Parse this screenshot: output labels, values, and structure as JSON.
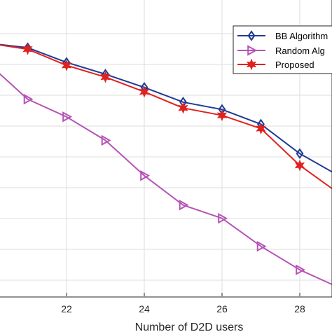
{
  "chart_data": {
    "type": "line",
    "xlabel": "Number of D2D users",
    "ylabel": "",
    "title": "",
    "xlim": [
      20,
      29
    ],
    "ylim": [
      0,
      10
    ],
    "x_ticks": [
      22,
      24,
      26,
      28
    ],
    "grid": true,
    "legend_position": "top-right",
    "series": [
      {
        "name": "BB Algorithm",
        "color": "#1f3a93",
        "marker": "diamond",
        "x": [
          20,
          21,
          22,
          23,
          24,
          25,
          26,
          27,
          28,
          29
        ],
        "y": [
          8.6,
          8.45,
          7.95,
          7.55,
          7.1,
          6.6,
          6.35,
          5.85,
          4.85,
          4.1
        ]
      },
      {
        "name": "Random Alg",
        "color": "#b653b6",
        "marker": "triangle-right",
        "x": [
          20,
          21,
          22,
          23,
          24,
          25,
          26,
          27,
          28,
          29
        ],
        "y": [
          7.9,
          6.7,
          6.1,
          5.3,
          4.1,
          3.1,
          2.65,
          1.7,
          0.9,
          0.3
        ]
      },
      {
        "name": "Proposed",
        "color": "#e0221e",
        "marker": "hexagram",
        "x": [
          20,
          21,
          22,
          23,
          24,
          25,
          26,
          27,
          28,
          29
        ],
        "y": [
          8.6,
          8.4,
          7.85,
          7.45,
          6.95,
          6.4,
          6.15,
          5.7,
          4.45,
          3.5
        ]
      }
    ]
  }
}
